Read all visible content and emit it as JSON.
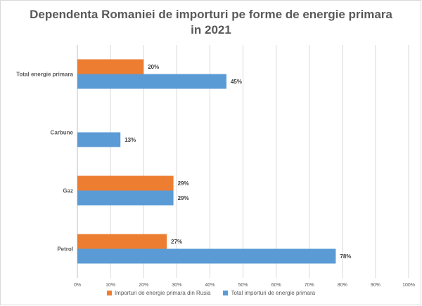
{
  "chart_data": {
    "type": "bar",
    "orientation": "horizontal",
    "title_lines": [
      "Dependenta Romaniei de importuri pe forme de energie primara",
      "in 2021"
    ],
    "categories": [
      "Total energie primara",
      "Carbune",
      "Gaz",
      "Petrol"
    ],
    "series": [
      {
        "name": "Importuri de energie primara din Rusia",
        "color": "#ed7d31",
        "values": [
          20,
          null,
          29,
          27
        ],
        "labels": [
          "20%",
          "",
          "29%",
          "27%"
        ]
      },
      {
        "name": "Total importuri de energie primara",
        "color": "#5b9bd5",
        "values": [
          45,
          13,
          29,
          78
        ],
        "labels": [
          "45%",
          "13%",
          "29%",
          "78%"
        ]
      }
    ],
    "xlim": [
      0,
      100
    ],
    "x_ticks": [
      "0%",
      "10%",
      "20%",
      "30%",
      "40%",
      "50%",
      "60%",
      "70%",
      "80%",
      "90%",
      "100%"
    ],
    "grid": true,
    "legend_position": "bottom"
  }
}
